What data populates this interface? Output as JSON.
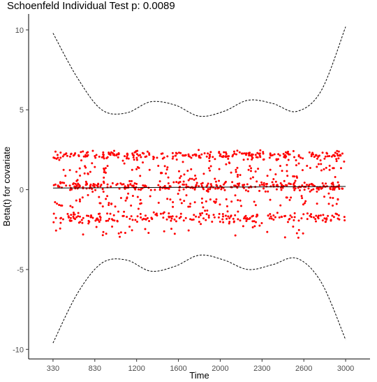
{
  "chart_data": {
    "type": "scatter",
    "title": "Schoenfeld Individual Test p: 0.0089",
    "xlabel": "Time",
    "ylabel": "Beta(t) for covariate",
    "x_tick_labels": [
      "330",
      "830",
      "1200",
      "1600",
      "2000",
      "2300",
      "2600",
      "3000"
    ],
    "y_ticks": [
      -10,
      -5,
      0,
      5,
      10
    ],
    "ylim": [
      -10.6,
      11.0
    ],
    "xlim": [
      0,
      3.5
    ],
    "grid": false,
    "legend": "none",
    "point_color": "#ff0000",
    "line_color": "#000000",
    "point_bands": [
      {
        "level": 2.15,
        "spread": 0.14,
        "count": 260
      },
      {
        "level": 1.25,
        "spread": 0.35,
        "count": 120
      },
      {
        "level": 0.2,
        "spread": 0.15,
        "count": 300
      },
      {
        "level": -0.75,
        "spread": 0.25,
        "count": 90
      },
      {
        "level": -1.75,
        "spread": 0.17,
        "count": 230
      },
      {
        "level": -2.55,
        "spread": 0.25,
        "count": 35
      }
    ],
    "fit_line": {
      "x": [
        0.25,
        3.25
      ],
      "y": [
        0.1,
        0.2
      ]
    },
    "upper_band": {
      "x": [
        0.25,
        0.5,
        0.75,
        1.0,
        1.25,
        1.5,
        1.75,
        2.0,
        2.25,
        2.5,
        2.75,
        3.0,
        3.25
      ],
      "y": [
        9.8,
        7.0,
        5.0,
        4.8,
        5.5,
        5.3,
        4.6,
        4.9,
        5.6,
        5.4,
        4.9,
        6.2,
        10.2
      ]
    },
    "lower_band": {
      "x": [
        0.25,
        0.5,
        0.75,
        1.0,
        1.25,
        1.5,
        1.75,
        2.0,
        2.25,
        2.5,
        2.75,
        3.0,
        3.25
      ],
      "y": [
        -9.6,
        -6.5,
        -4.6,
        -4.4,
        -5.1,
        -4.8,
        -4.1,
        -4.4,
        -5.0,
        -4.7,
        -4.3,
        -5.8,
        -9.4
      ]
    }
  }
}
